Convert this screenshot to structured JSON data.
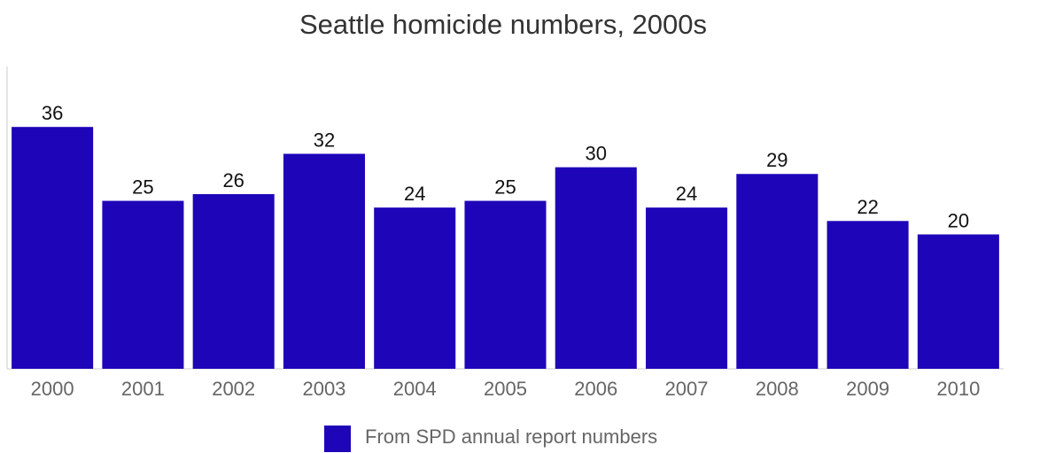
{
  "chart_data": {
    "type": "bar",
    "title": "Seattle homicide numbers, 2000s",
    "categories": [
      "2000",
      "2001",
      "2002",
      "2003",
      "2004",
      "2005",
      "2006",
      "2007",
      "2008",
      "2009",
      "2010"
    ],
    "series": [
      {
        "name": "From SPD annual report numbers",
        "color": "#1e05b8",
        "values": [
          36,
          25,
          26,
          32,
          24,
          25,
          30,
          24,
          29,
          22,
          20
        ]
      }
    ],
    "ylim": [
      0,
      45
    ]
  }
}
